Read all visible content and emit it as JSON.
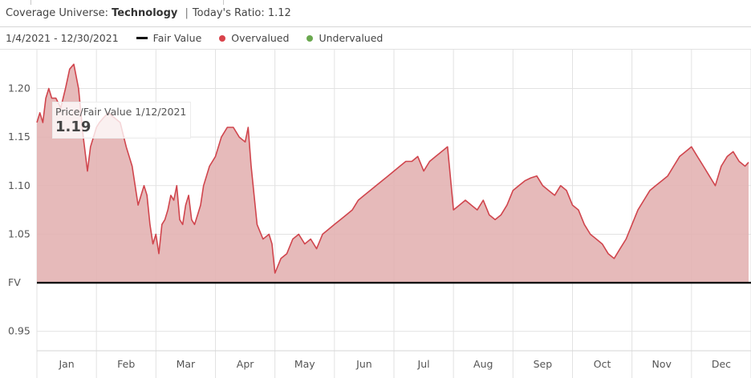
{
  "header": {
    "universe_label": "Coverage Universe:",
    "universe_value": "Technology",
    "separator": "|",
    "ratio_label": "Today's Ratio: 1.12"
  },
  "legend": {
    "date_range": "1/4/2021 - 12/30/2021",
    "items": [
      {
        "label": "Fair Value",
        "color": "#111111"
      },
      {
        "label": "Overvalued",
        "color": "#d9434b"
      },
      {
        "label": "Undervalued",
        "color": "#6aa84f"
      }
    ]
  },
  "tooltip": {
    "label": "Price/Fair Value 1/12/2021",
    "value": "1.19"
  },
  "colors": {
    "line": "#d0454d",
    "fill": "#e3b3b3",
    "fair_value_line": "#111111",
    "grid": "#e2e2e2"
  },
  "chart_data": {
    "type": "area",
    "title": "",
    "xlabel": "",
    "ylabel": "",
    "baseline": 1.0,
    "baseline_tick_label": "FV",
    "xlim": [
      0,
      12
    ],
    "ylim": [
      0.93,
      1.24
    ],
    "y_ticks": [
      0.95,
      1.0,
      1.05,
      1.1,
      1.15,
      1.2
    ],
    "y_tick_labels": [
      "0.95",
      "FV",
      "1.05",
      "1.10",
      "1.15",
      "1.20"
    ],
    "x_tick_labels": [
      "Jan",
      "Feb",
      "Mar",
      "Apr",
      "May",
      "Jun",
      "Jul",
      "Aug",
      "Sep",
      "Oct",
      "Nov",
      "Dec"
    ],
    "series": [
      {
        "x": [
          0.0,
          0.05,
          0.1,
          0.15,
          0.2,
          0.25,
          0.32,
          0.4,
          0.48,
          0.55,
          0.62,
          0.7,
          0.78,
          0.85,
          0.9,
          0.95,
          1.0,
          1.05,
          1.12,
          1.2,
          1.3,
          1.4,
          1.5,
          1.6,
          1.7,
          1.8,
          1.85,
          1.9,
          1.95,
          2.0,
          2.05,
          2.1,
          2.15,
          2.2,
          2.25,
          2.3,
          2.35,
          2.4,
          2.45,
          2.5,
          2.55,
          2.6,
          2.65,
          2.7,
          2.75,
          2.8,
          2.85,
          2.9,
          2.95,
          3.0,
          3.05,
          3.1,
          3.2,
          3.3,
          3.4,
          3.5,
          3.55,
          3.6,
          3.7,
          3.8,
          3.9,
          3.95,
          4.0,
          4.1,
          4.2,
          4.3,
          4.4,
          4.5,
          4.6,
          4.7,
          4.8,
          4.9,
          5.0,
          5.1,
          5.2,
          5.3,
          5.4,
          5.5,
          5.6,
          5.7,
          5.8,
          5.9,
          6.0,
          6.1,
          6.2,
          6.3,
          6.4,
          6.5,
          6.6,
          6.7,
          6.8,
          6.9,
          7.0,
          7.1,
          7.2,
          7.3,
          7.4,
          7.5,
          7.6,
          7.7,
          7.8,
          7.9,
          8.0,
          8.1,
          8.2,
          8.3,
          8.4,
          8.5,
          8.6,
          8.7,
          8.8,
          8.9,
          9.0,
          9.1,
          9.2,
          9.3,
          9.4,
          9.5,
          9.6,
          9.7,
          9.8,
          9.9,
          10.0,
          10.1,
          10.2,
          10.3,
          10.4,
          10.5,
          10.6,
          10.7,
          10.8,
          10.9,
          11.0,
          11.1,
          11.2,
          11.3,
          11.4,
          11.5,
          11.6,
          11.7,
          11.8,
          11.9,
          11.96
        ],
        "values": [
          1.165,
          1.175,
          1.165,
          1.19,
          1.2,
          1.19,
          1.19,
          1.18,
          1.2,
          1.22,
          1.225,
          1.2,
          1.15,
          1.115,
          1.14,
          1.15,
          1.16,
          1.165,
          1.17,
          1.175,
          1.17,
          1.165,
          1.14,
          1.12,
          1.08,
          1.1,
          1.09,
          1.06,
          1.04,
          1.05,
          1.03,
          1.06,
          1.065,
          1.075,
          1.09,
          1.085,
          1.1,
          1.065,
          1.06,
          1.08,
          1.09,
          1.065,
          1.06,
          1.07,
          1.08,
          1.1,
          1.11,
          1.12,
          1.125,
          1.13,
          1.14,
          1.15,
          1.16,
          1.16,
          1.15,
          1.145,
          1.16,
          1.12,
          1.06,
          1.045,
          1.05,
          1.04,
          1.01,
          1.025,
          1.03,
          1.045,
          1.05,
          1.04,
          1.045,
          1.035,
          1.05,
          1.055,
          1.06,
          1.065,
          1.07,
          1.075,
          1.085,
          1.09,
          1.095,
          1.1,
          1.105,
          1.11,
          1.115,
          1.12,
          1.125,
          1.125,
          1.13,
          1.115,
          1.125,
          1.13,
          1.135,
          1.14,
          1.075,
          1.08,
          1.085,
          1.08,
          1.075,
          1.085,
          1.07,
          1.065,
          1.07,
          1.08,
          1.095,
          1.1,
          1.105,
          1.108,
          1.11,
          1.1,
          1.095,
          1.09,
          1.1,
          1.095,
          1.08,
          1.075,
          1.06,
          1.05,
          1.045,
          1.04,
          1.03,
          1.025,
          1.035,
          1.045,
          1.06,
          1.075,
          1.085,
          1.095,
          1.1,
          1.105,
          1.11,
          1.12,
          1.13,
          1.135,
          1.14,
          1.13,
          1.12,
          1.11,
          1.1,
          1.12,
          1.13,
          1.135,
          1.125,
          1.12,
          1.124
        ]
      }
    ]
  }
}
